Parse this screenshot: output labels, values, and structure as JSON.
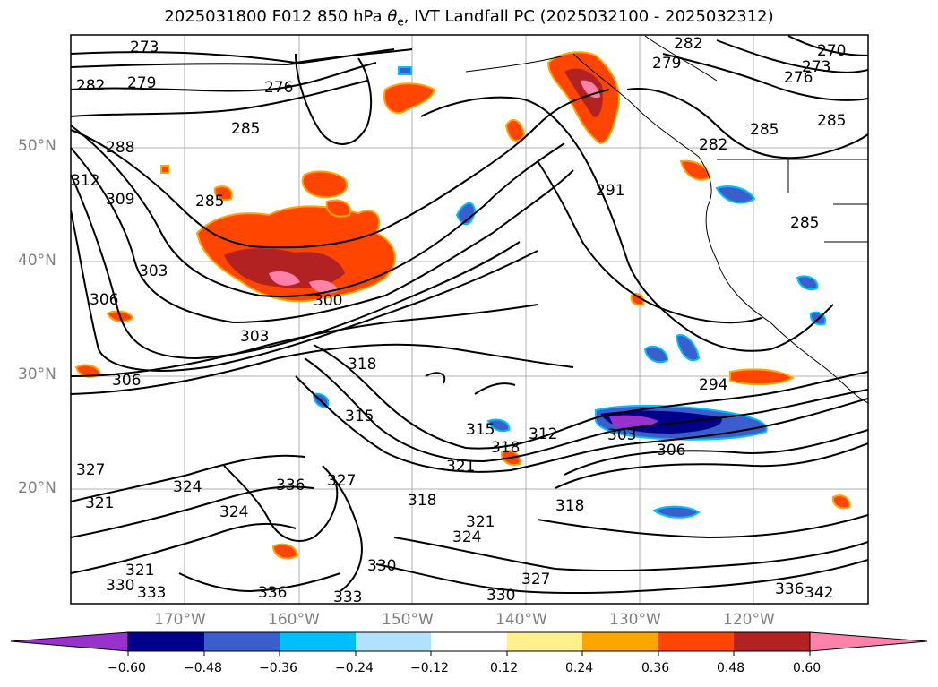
{
  "title": {
    "main": "2025031800 F012 850 hPa ",
    "symbol": "θ",
    "sub": "e",
    "rest": ", IVT Landfall PC (2025032100 - 2025032312)"
  },
  "lat_labels": [
    "50°N",
    "40°N",
    "30°N",
    "20°N"
  ],
  "lon_labels": [
    "170°W",
    "160°W",
    "150°W",
    "140°W",
    "130°W",
    "120°W"
  ],
  "colorbar": {
    "ticks": [
      "−0.60",
      "−0.48",
      "−0.36",
      "−0.24",
      "−0.12",
      "0.12",
      "0.24",
      "0.36",
      "0.48",
      "0.60"
    ],
    "colors": [
      "#9932cc",
      "#00008b",
      "#3a5fcd",
      "#00bfff",
      "#b0e2ff",
      "#ffffff",
      "#fff08c",
      "#ffa500",
      "#ff4500",
      "#b22222",
      "#ff82ab"
    ]
  },
  "contour_labels": [
    "273",
    "282",
    "279",
    "276",
    "285",
    "288",
    "312",
    "309",
    "285",
    "303",
    "306",
    "303",
    "300",
    "306",
    "318",
    "315",
    "312",
    "291",
    "294",
    "306",
    "303",
    "315",
    "318",
    "324",
    "321",
    "327",
    "330",
    "333",
    "336",
    "342",
    "282",
    "279",
    "270",
    "273",
    "276",
    "285",
    "282",
    "285",
    "285",
    "324",
    "321",
    "318",
    "327",
    "330",
    "336",
    "333",
    "321",
    "330",
    "324",
    "321",
    "327",
    "318",
    "336"
  ]
}
